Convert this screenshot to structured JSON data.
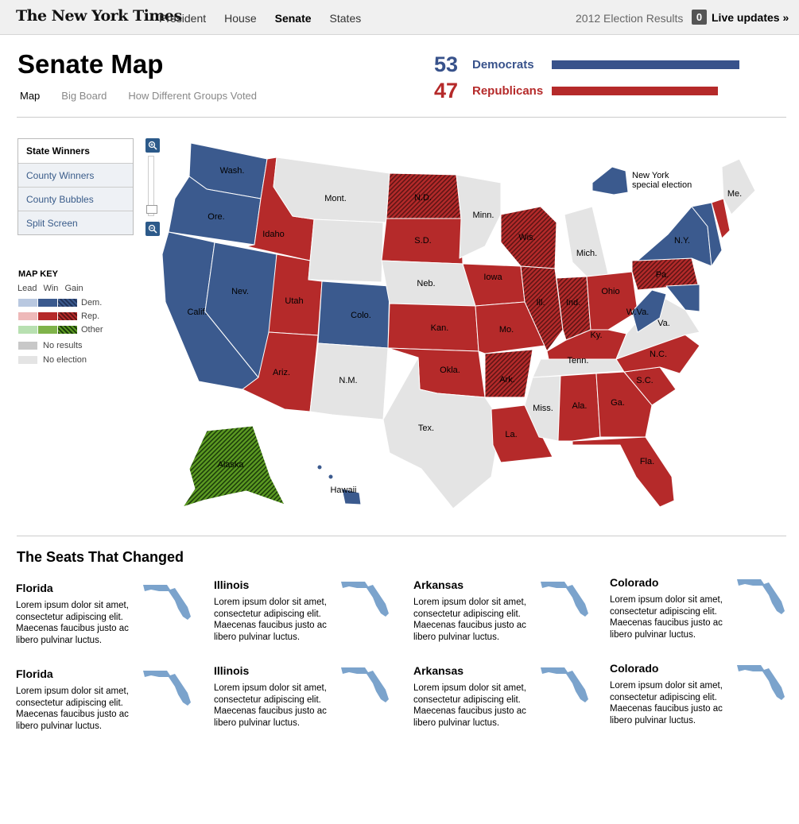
{
  "header": {
    "logo": "The New York Times",
    "nav": [
      "President",
      "House",
      "Senate",
      "States"
    ],
    "nav_active": "Senate",
    "election_label": "2012 Election Results",
    "live_count": "0",
    "live_label": "Live updates »"
  },
  "page": {
    "title": "Senate Map",
    "subnav": [
      "Map",
      "Big Board",
      "How Different Groups Voted"
    ]
  },
  "tally": {
    "dem": {
      "count": "53",
      "label": "Democrats",
      "share": 53,
      "color": "#38528b"
    },
    "rep": {
      "count": "47",
      "label": "Republicans",
      "share": 47,
      "color": "#b52a2a"
    }
  },
  "view_tabs": [
    "State Winners",
    "County Winners",
    "County Bubbles",
    "Split Screen"
  ],
  "zoom": {
    "in_label": "+",
    "out_label": "−"
  },
  "map_key": {
    "title": "MAP KEY",
    "columns": [
      "Lead",
      "Win",
      "Gain"
    ],
    "rows": [
      {
        "label": "Dem.",
        "lead": "#b9c8e0",
        "win": "#3b5a8e",
        "gain": "hatch-dem"
      },
      {
        "label": "Rep.",
        "lead": "#eeb9b9",
        "win": "#b52a2a",
        "gain": "hatch-rep"
      },
      {
        "label": "Other",
        "lead": "#b8e0b1",
        "win": "#7fb34a",
        "gain": "hatch-oth"
      }
    ],
    "no_results": {
      "label": "No results",
      "color": "#c8c8c8"
    },
    "no_election": {
      "label": "No election",
      "color": "#e4e4e4"
    }
  },
  "map": {
    "colors": {
      "dem": "#3b5a8e",
      "rep": "#b52a2a",
      "none": "#e4e4e4",
      "other": "#5c9b22"
    },
    "labels": [
      "Wash.",
      "Ore.",
      "Calif.",
      "Nev.",
      "Idaho",
      "Mont.",
      "Utah",
      "Ariz.",
      "Colo.",
      "N.M.",
      "N.D.",
      "S.D.",
      "Neb.",
      "Kan.",
      "Okla.",
      "Tex.",
      "Minn.",
      "Iowa",
      "Mo.",
      "Ark.",
      "La.",
      "Wis.",
      "Ill.",
      "Ind.",
      "Mich.",
      "Ohio",
      "Ky.",
      "Tenn.",
      "Miss.",
      "Ala.",
      "Ga.",
      "Fla.",
      "S.C.",
      "N.C.",
      "Va.",
      "W.Va.",
      "Pa.",
      "N.Y.",
      "Me.",
      "Alaska",
      "Hawaii"
    ],
    "ny_special": "New York\nspecial election",
    "ny_special_line1": "New York",
    "ny_special_line2": "special election"
  },
  "seats": {
    "title": "The Seats That Changed",
    "items": [
      {
        "state": "Florida",
        "text": "Lorem ipsum dolor sit amet, consectetur adipiscing elit. Maecenas faucibus justo ac libero pulvinar luctus."
      },
      {
        "state": "Illinois",
        "text": "Lorem ipsum dolor sit amet, consectetur adipiscing elit. Maecenas faucibus justo ac libero pulvinar luctus."
      },
      {
        "state": "Arkansas",
        "text": "Lorem ipsum dolor sit amet, consectetur adipiscing elit. Maecenas faucibus justo ac libero pulvinar luctus."
      },
      {
        "state": "Colorado",
        "text": "Lorem ipsum dolor sit amet, consectetur adipiscing elit. Maecenas faucibus justo ac libero pulvinar luctus."
      },
      {
        "state": "Florida",
        "text": "Lorem ipsum dolor sit amet, consectetur adipiscing elit. Maecenas faucibus justo ac libero pulvinar luctus."
      },
      {
        "state": "Illinois",
        "text": "Lorem ipsum dolor sit amet, consectetur adipiscing elit. Maecenas faucibus justo ac libero pulvinar luctus."
      },
      {
        "state": "Arkansas",
        "text": "Lorem ipsum dolor sit amet, consectetur adipiscing elit. Maecenas faucibus justo ac libero pulvinar luctus."
      },
      {
        "state": "Colorado",
        "text": "Lorem ipsum dolor sit amet, consectetur adipiscing elit. Maecenas faucibus justo ac libero pulvinar luctus."
      }
    ]
  }
}
